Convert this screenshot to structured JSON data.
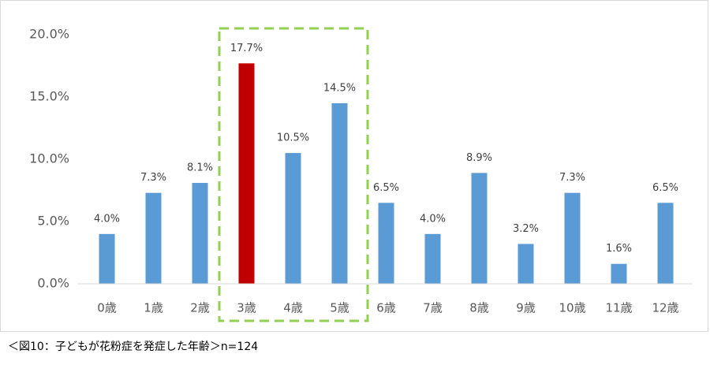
{
  "chart_data": {
    "type": "bar",
    "categories": [
      "0歳",
      "1歳",
      "2歳",
      "3歳",
      "4歳",
      "5歳",
      "6歳",
      "7歳",
      "8歳",
      "9歳",
      "10歳",
      "11歳",
      "12歳"
    ],
    "values": [
      4.0,
      7.3,
      8.1,
      17.7,
      10.5,
      14.5,
      6.5,
      4.0,
      8.9,
      3.2,
      7.3,
      1.6,
      6.5
    ],
    "value_labels": [
      "4.0%",
      "7.3%",
      "8.1%",
      "17.7%",
      "10.5%",
      "14.5%",
      "6.5%",
      "4.0%",
      "8.9%",
      "3.2%",
      "7.3%",
      "1.6%",
      "6.5%"
    ],
    "colors": [
      "#5b9bd5",
      "#5b9bd5",
      "#5b9bd5",
      "#c00000",
      "#5b9bd5",
      "#5b9bd5",
      "#5b9bd5",
      "#5b9bd5",
      "#5b9bd5",
      "#5b9bd5",
      "#5b9bd5",
      "#5b9bd5",
      "#5b9bd5"
    ],
    "ylim": [
      0,
      20
    ],
    "yticks": [
      {
        "value": 0,
        "label": "0.0%"
      },
      {
        "value": 5,
        "label": "5.0%"
      },
      {
        "value": 10,
        "label": "10.0%"
      },
      {
        "value": 15,
        "label": "15.0%"
      },
      {
        "value": 20,
        "label": "20.0%"
      }
    ],
    "grid": false,
    "caption": "＜図10：子どもが花粉症を発症した年齢＞n=124"
  }
}
